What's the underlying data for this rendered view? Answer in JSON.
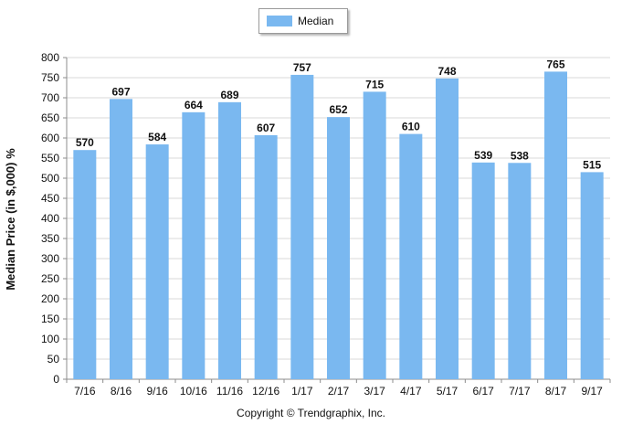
{
  "chart_data": {
    "type": "bar",
    "categories": [
      "7/16",
      "8/16",
      "9/16",
      "10/16",
      "11/16",
      "12/16",
      "1/17",
      "2/17",
      "3/17",
      "4/17",
      "5/17",
      "6/17",
      "7/17",
      "8/17",
      "9/17"
    ],
    "series": [
      {
        "name": "Median",
        "values": [
          570,
          697,
          584,
          664,
          689,
          607,
          757,
          652,
          715,
          610,
          748,
          539,
          538,
          765,
          515
        ],
        "color": "#7ab8f0"
      }
    ],
    "ylabel": "Median Price (in $,000) %",
    "xlabel": "",
    "ylim": [
      0,
      800
    ],
    "yticks": [
      0,
      50,
      100,
      150,
      200,
      250,
      300,
      350,
      400,
      450,
      500,
      550,
      600,
      650,
      700,
      750,
      800
    ],
    "grid": true,
    "legend_position": "top-center"
  },
  "footer": {
    "copyright": "Copyright © Trendgraphix, Inc."
  }
}
